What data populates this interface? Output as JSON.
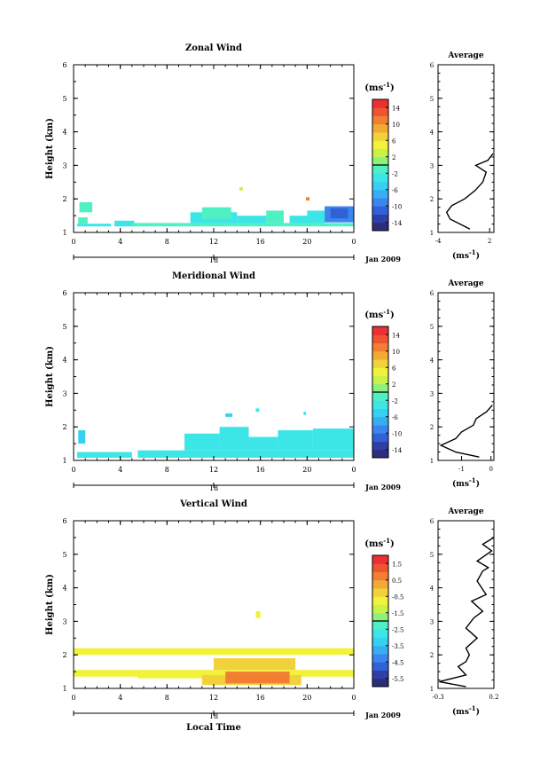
{
  "chart_data": [
    {
      "type": "heatmap",
      "title": "Zonal Wind",
      "xlabel": "",
      "ylabel": "Height (km)",
      "xlim": [
        0,
        24
      ],
      "ylim": [
        1,
        6
      ],
      "x_ticks": [
        "0",
        "4",
        "8",
        "12",
        "16",
        "20",
        "0"
      ],
      "x_tick_values": [
        0,
        4,
        8,
        12,
        16,
        20,
        24
      ],
      "y_ticks": [
        "1",
        "2",
        "3",
        "4",
        "5",
        "6"
      ],
      "date_tick": "18",
      "date_label": "Jan 2009",
      "colorbar": {
        "unit": "(ms",
        "unit_exp": "-1",
        "unit_close": ")",
        "ticks": [
          "14",
          "10",
          "6",
          "2",
          "-2",
          "-6",
          "-10",
          "-14"
        ],
        "range": [
          -16,
          16
        ]
      },
      "cells": [
        {
          "t0": 0.3,
          "t1": 3.2,
          "h0": 1.18,
          "h1": 1.26,
          "v": -3
        },
        {
          "t0": 0.4,
          "t1": 1.2,
          "h0": 1.26,
          "h1": 1.45,
          "v": -2
        },
        {
          "t0": 0.5,
          "t1": 1.6,
          "h0": 1.6,
          "h1": 1.9,
          "v": -1
        },
        {
          "t0": 3.5,
          "t1": 5.2,
          "h0": 1.18,
          "h1": 1.35,
          "v": -3
        },
        {
          "t0": 5.0,
          "t1": 24.0,
          "h0": 1.18,
          "h1": 1.28,
          "v": -2
        },
        {
          "t0": 10.0,
          "t1": 14.0,
          "h0": 1.28,
          "h1": 1.6,
          "v": -3
        },
        {
          "t0": 11.0,
          "t1": 13.5,
          "h0": 1.4,
          "h1": 1.75,
          "v": -2
        },
        {
          "t0": 14.0,
          "t1": 16.5,
          "h0": 1.28,
          "h1": 1.5,
          "v": -4
        },
        {
          "t0": 16.5,
          "t1": 18.0,
          "h0": 1.28,
          "h1": 1.65,
          "v": -2
        },
        {
          "t0": 18.5,
          "t1": 20.5,
          "h0": 1.28,
          "h1": 1.5,
          "v": -3
        },
        {
          "t0": 20.0,
          "t1": 21.5,
          "h0": 1.28,
          "h1": 1.65,
          "v": -4
        },
        {
          "t0": 21.5,
          "t1": 24.0,
          "h0": 1.3,
          "h1": 1.78,
          "v": -9
        },
        {
          "t0": 22.0,
          "t1": 23.5,
          "h0": 1.42,
          "h1": 1.72,
          "v": -11
        },
        {
          "t0": 14.2,
          "t1": 14.5,
          "h0": 2.25,
          "h1": 2.35,
          "v": 2
        },
        {
          "t0": 19.9,
          "t1": 20.2,
          "h0": 1.95,
          "h1": 2.05,
          "v": 10
        }
      ],
      "average": {
        "title": "Average",
        "xlim": [
          -4,
          2.5
        ],
        "x_ticks": [
          "-4",
          "2"
        ],
        "x_tick_values": [
          -4,
          2
        ],
        "y_ticks": [
          "1",
          "2",
          "3",
          "4",
          "5",
          "6"
        ],
        "unit": "(ms",
        "unit_exp": "-1",
        "unit_close": ")",
        "profile": [
          [
            -0.3,
            1.1
          ],
          [
            -2.6,
            1.4
          ],
          [
            -3.0,
            1.6
          ],
          [
            -2.4,
            1.8
          ],
          [
            -0.9,
            2.0
          ],
          [
            0.3,
            2.25
          ],
          [
            1.2,
            2.5
          ],
          [
            1.6,
            2.8
          ],
          [
            0.4,
            3.0
          ],
          [
            1.8,
            3.15
          ],
          [
            2.4,
            3.35
          ]
        ]
      }
    },
    {
      "type": "heatmap",
      "title": "Meridional Wind",
      "xlabel": "",
      "ylabel": "Height (km)",
      "xlim": [
        0,
        24
      ],
      "ylim": [
        1,
        6
      ],
      "x_ticks": [
        "0",
        "4",
        "8",
        "12",
        "16",
        "20",
        "0"
      ],
      "x_tick_values": [
        0,
        4,
        8,
        12,
        16,
        20,
        24
      ],
      "y_ticks": [
        "1",
        "2",
        "3",
        "4",
        "5",
        "6"
      ],
      "date_tick": "18",
      "date_label": "Jan 2009",
      "colorbar": {
        "unit": "(ms",
        "unit_exp": "-1",
        "unit_close": ")",
        "ticks": [
          "14",
          "10",
          "6",
          "2",
          "-2",
          "-6",
          "-10",
          "-14"
        ],
        "range": [
          -16,
          16
        ]
      },
      "cells": [
        {
          "t0": 0.3,
          "t1": 5.0,
          "h0": 1.08,
          "h1": 1.25,
          "v": -4
        },
        {
          "t0": 0.4,
          "t1": 1.0,
          "h0": 1.5,
          "h1": 1.9,
          "v": -5
        },
        {
          "t0": 5.5,
          "t1": 24.0,
          "h0": 1.08,
          "h1": 1.3,
          "v": -4
        },
        {
          "t0": 9.5,
          "t1": 12.5,
          "h0": 1.3,
          "h1": 1.8,
          "v": -4
        },
        {
          "t0": 12.5,
          "t1": 15.0,
          "h0": 1.3,
          "h1": 2.0,
          "v": -4
        },
        {
          "t0": 15.0,
          "t1": 17.5,
          "h0": 1.3,
          "h1": 1.7,
          "v": -4
        },
        {
          "t0": 17.5,
          "t1": 20.5,
          "h0": 1.3,
          "h1": 1.9,
          "v": -4
        },
        {
          "t0": 20.5,
          "t1": 24.0,
          "h0": 1.3,
          "h1": 1.95,
          "v": -4
        },
        {
          "t0": 13.0,
          "t1": 13.6,
          "h0": 2.3,
          "h1": 2.4,
          "v": -5
        },
        {
          "t0": 15.6,
          "t1": 15.9,
          "h0": 2.45,
          "h1": 2.55,
          "v": -4
        },
        {
          "t0": 19.7,
          "t1": 19.9,
          "h0": 2.35,
          "h1": 2.45,
          "v": -4
        }
      ],
      "average": {
        "title": "Average",
        "xlim": [
          -1.8,
          0.1
        ],
        "x_ticks": [
          "-1",
          "0"
        ],
        "x_tick_values": [
          -1,
          0
        ],
        "y_ticks": [
          "1",
          "2",
          "3",
          "4",
          "5",
          "6"
        ],
        "unit": "(ms",
        "unit_exp": "-1",
        "unit_close": ")",
        "profile": [
          [
            -0.4,
            1.1
          ],
          [
            -1.2,
            1.25
          ],
          [
            -1.7,
            1.45
          ],
          [
            -1.2,
            1.65
          ],
          [
            -1.0,
            1.85
          ],
          [
            -0.6,
            2.05
          ],
          [
            -0.5,
            2.25
          ],
          [
            -0.15,
            2.45
          ],
          [
            0.05,
            2.65
          ]
        ]
      }
    },
    {
      "type": "heatmap",
      "title": "Vertical Wind",
      "xlabel": "Local Time",
      "ylabel": "Height (km)",
      "xlim": [
        0,
        24
      ],
      "ylim": [
        1,
        6
      ],
      "x_ticks": [
        "0",
        "4",
        "8",
        "12",
        "16",
        "20",
        "0"
      ],
      "x_tick_values": [
        0,
        4,
        8,
        12,
        16,
        20,
        24
      ],
      "y_ticks": [
        "1",
        "2",
        "3",
        "4",
        "5",
        "6"
      ],
      "date_tick": "18",
      "date_label": "Jan 2009",
      "colorbar": {
        "unit": "(ms",
        "unit_exp": "-1",
        "unit_close": ")",
        "ticks": [
          "1.5",
          "0.5",
          "-0.5",
          "-1.5",
          "-2.5",
          "-3.5",
          "-4.5",
          "-5.5"
        ],
        "range": [
          -6,
          2
        ]
      },
      "cells": [
        {
          "t0": 0.0,
          "t1": 24.0,
          "h0": 2.0,
          "h1": 2.2,
          "v": -0.6
        },
        {
          "t0": 0.0,
          "t1": 24.0,
          "h0": 1.35,
          "h1": 1.55,
          "v": -0.6
        },
        {
          "t0": 5.5,
          "t1": 11.0,
          "h0": 1.3,
          "h1": 1.5,
          "v": -1.0
        },
        {
          "t0": 11.0,
          "t1": 19.5,
          "h0": 1.1,
          "h1": 1.4,
          "v": -0.3
        },
        {
          "t0": 13.0,
          "t1": 18.5,
          "h0": 1.15,
          "h1": 1.5,
          "v": 0.6
        },
        {
          "t0": 14.0,
          "t1": 17.0,
          "h0": 1.2,
          "h1": 1.35,
          "v": 0.9
        },
        {
          "t0": 12.0,
          "t1": 19.0,
          "h0": 1.55,
          "h1": 1.9,
          "v": -0.5
        },
        {
          "t0": 15.6,
          "t1": 16.0,
          "h0": 3.1,
          "h1": 3.3,
          "v": -0.6
        }
      ],
      "average": {
        "title": "Average",
        "xlim": [
          -0.3,
          0.2
        ],
        "x_ticks": [
          "-0.3",
          "0.2"
        ],
        "x_tick_values": [
          -0.3,
          0.2
        ],
        "y_ticks": [
          "1",
          "2",
          "3",
          "4",
          "5",
          "6"
        ],
        "unit": "(ms",
        "unit_exp": "-1",
        "unit_close": ")",
        "profile": [
          [
            -0.05,
            1.05
          ],
          [
            -0.29,
            1.2
          ],
          [
            -0.05,
            1.4
          ],
          [
            -0.12,
            1.65
          ],
          [
            -0.05,
            1.8
          ],
          [
            -0.02,
            2.0
          ],
          [
            -0.05,
            2.2
          ],
          [
            0.05,
            2.5
          ],
          [
            -0.05,
            2.8
          ],
          [
            0.02,
            3.1
          ],
          [
            0.1,
            3.3
          ],
          [
            0.0,
            3.6
          ],
          [
            0.13,
            3.8
          ],
          [
            0.05,
            4.2
          ],
          [
            0.1,
            4.5
          ],
          [
            0.15,
            4.6
          ],
          [
            0.05,
            4.8
          ],
          [
            0.18,
            5.1
          ],
          [
            0.1,
            5.3
          ],
          [
            0.2,
            5.5
          ]
        ]
      }
    }
  ]
}
